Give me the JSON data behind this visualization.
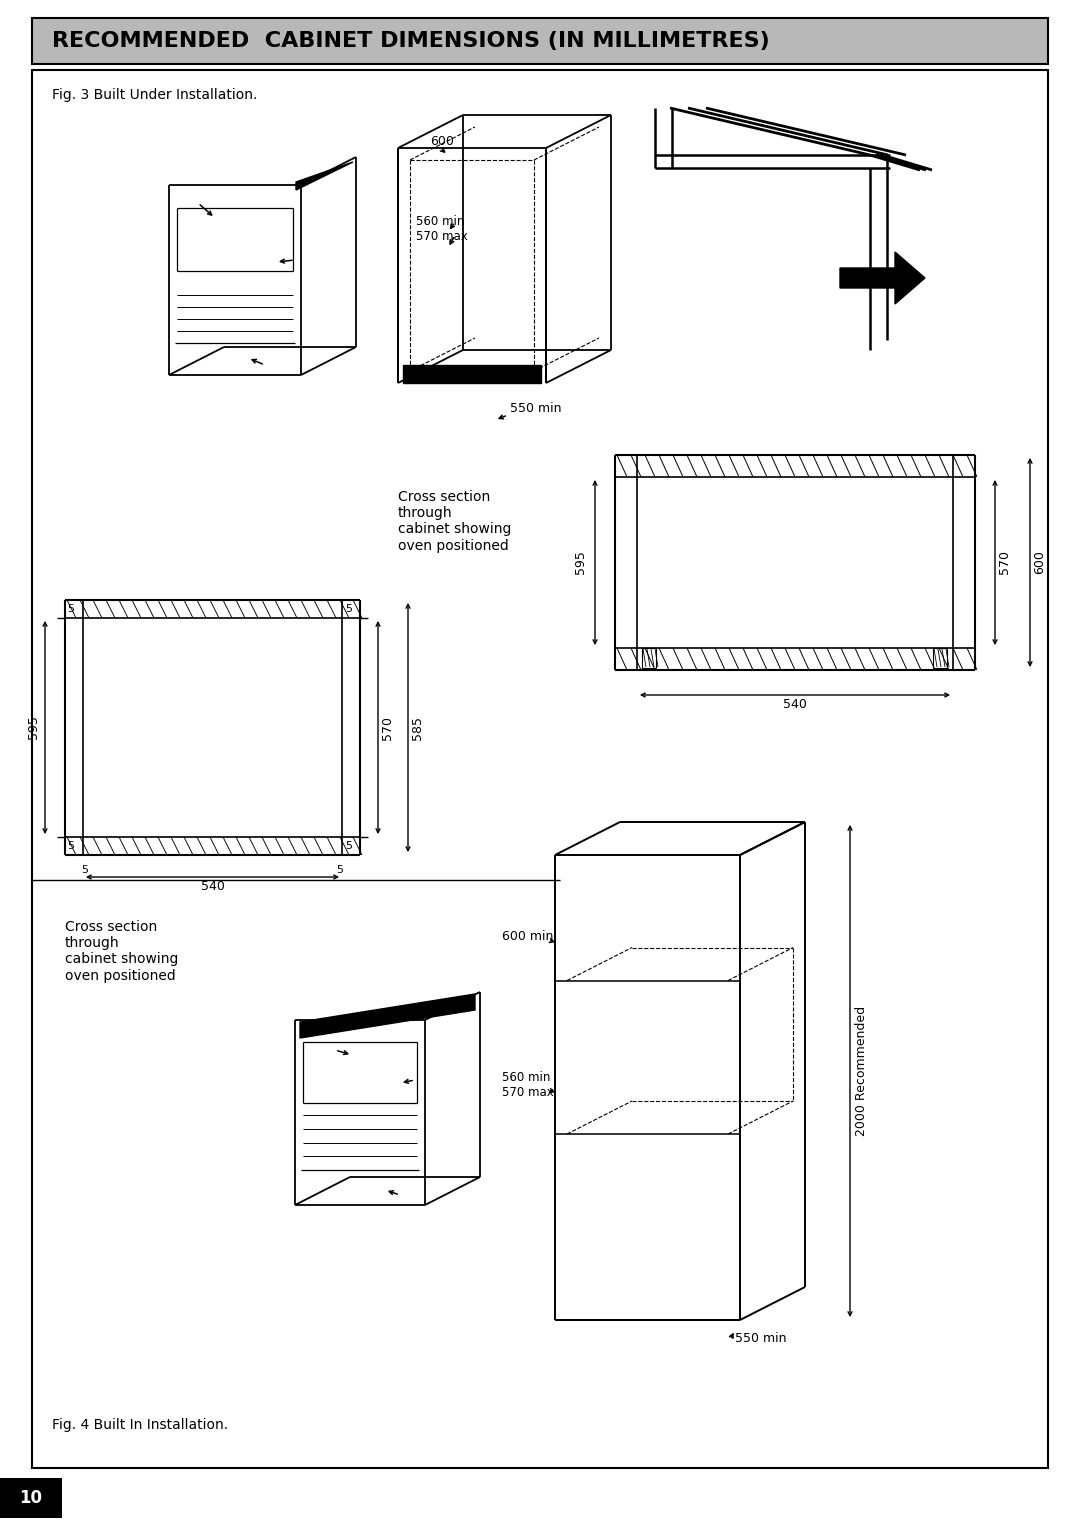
{
  "title": "RECOMMENDED  CABINET DIMENSIONS (IN MILLIMETRES)",
  "title_bg": "#b8b8b8",
  "fig3_label": "Fig. 3 Built Under Installation.",
  "fig4_label": "Fig. 4 Built In Installation.",
  "page_number": "10"
}
